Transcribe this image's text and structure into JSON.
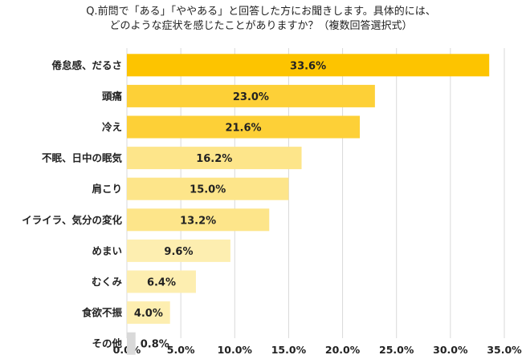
{
  "chart_data": {
    "type": "bar",
    "orientation": "horizontal",
    "title_lines": [
      "Q.前問で「ある」「ややある」と回答した方にお聞きします。具体的には、",
      "どのような症状を感じたことがありますか？（複数回答選択式）"
    ],
    "categories": [
      "倦怠感、だるさ",
      "頭痛",
      "冷え",
      "不眠、日中の眠気",
      "肩こり",
      "イライラ、気分の変化",
      "めまい",
      "むくみ",
      "食欲不振",
      "その他"
    ],
    "values": [
      33.6,
      23.0,
      21.6,
      16.2,
      15.0,
      13.2,
      9.6,
      6.4,
      4.0,
      0.8
    ],
    "value_labels": [
      "33.6%",
      "23.0%",
      "21.6%",
      "16.2%",
      "15.0%",
      "13.2%",
      "9.6%",
      "6.4%",
      "4.0%",
      "0.8%"
    ],
    "x_ticks": [
      "0.0%",
      "5.0%",
      "10.0%",
      "15.0%",
      "20.0%",
      "25.0%",
      "30.0%",
      "35.0%"
    ],
    "xlim": [
      0,
      35
    ],
    "grid": true,
    "bar_colors": [
      "#fdc400",
      "#fdd037",
      "#fdd037",
      "#fde58a",
      "#fde58a",
      "#fde58a",
      "#fdeeb0",
      "#fdeeb0",
      "#fdeeb0",
      "#d9d9d9"
    ]
  }
}
